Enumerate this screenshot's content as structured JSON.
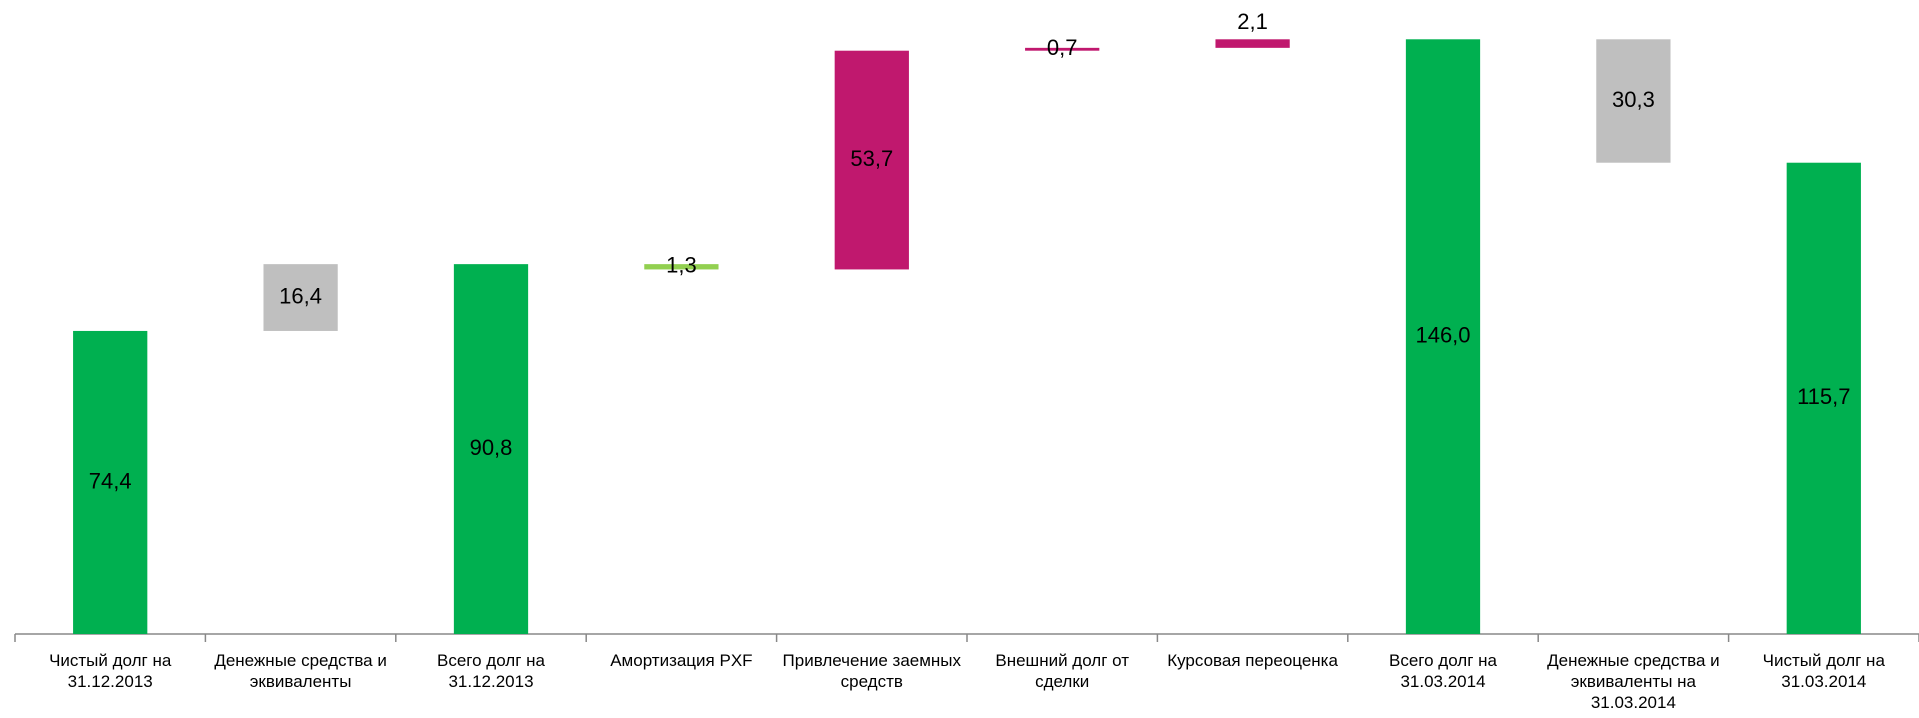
{
  "chart_data": {
    "type": "waterfall",
    "categories": [
      "Чистый долг на 31.12.2013",
      "Денежные средства и эквиваленты",
      "Всего долг на 31.12.2013",
      "Амортизация PXF",
      "Привлечение заемных средств",
      "Внешний долг от сделки",
      "Курсовая переоценка",
      "Всего долг на 31.03.2014",
      "Денежные средства и эквиваленты на 31.03.2014",
      "Чистый долг на 31.03.2014"
    ],
    "values": [
      74.4,
      16.4,
      90.8,
      1.3,
      53.7,
      0.7,
      2.1,
      146.0,
      30.3,
      115.7
    ],
    "value_labels": [
      "74,4",
      "16,4",
      "90,8",
      "1,3",
      "53,7",
      "0,7",
      "2,1",
      "146,0",
      "30,3",
      "115,7"
    ],
    "bar_kinds": [
      "total",
      "increase",
      "total",
      "decrease",
      "increase",
      "increase",
      "increase",
      "total",
      "decrease",
      "total"
    ],
    "colors": [
      "#00b050",
      "#bfbfbf",
      "#00b050",
      "#92d050",
      "#c0186e",
      "#c0186e",
      "#c0186e",
      "#00b050",
      "#bfbfbf",
      "#00b050"
    ],
    "ylim": [
      0,
      150
    ]
  }
}
